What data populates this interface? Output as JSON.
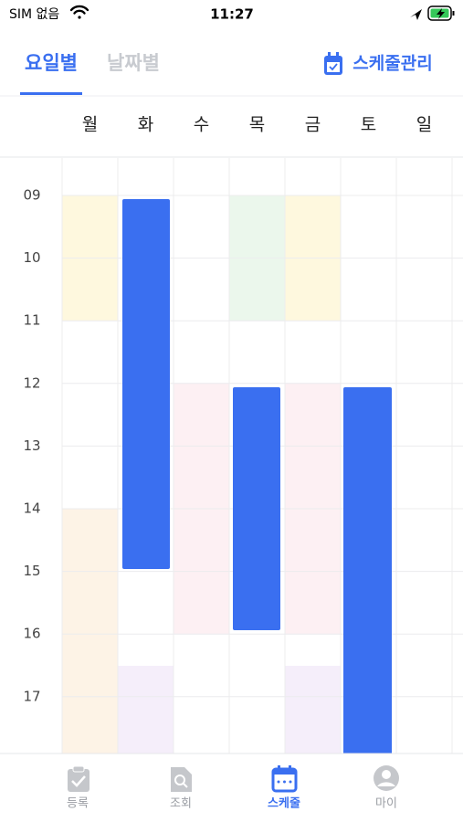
{
  "status_bar": {
    "carrier": "SIM 없음",
    "time": "11:27"
  },
  "tabs": {
    "items": [
      "요일별",
      "날짜별"
    ],
    "action": "스케줄관리"
  },
  "timetable": {
    "days": [
      "월",
      "화",
      "수",
      "목",
      "금",
      "토",
      "일"
    ],
    "hours": [
      "09",
      "10",
      "11",
      "12",
      "13",
      "14",
      "15",
      "16",
      "17"
    ]
  },
  "bottom_nav": {
    "items": [
      "등록",
      "조회",
      "스케줄",
      "마이"
    ]
  }
}
